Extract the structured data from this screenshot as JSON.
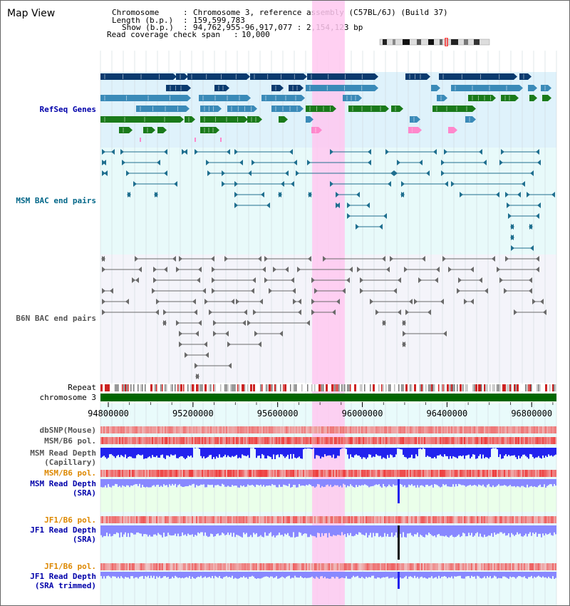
{
  "view": {
    "title": "Map View"
  },
  "header": {
    "chromosome_key": "Chromosome",
    "chromosome_value": "Chromosome 3, reference assembly (C57BL/6J) (Build 37)",
    "length_key": "Length (b.p.)",
    "length_value": "159,599,783",
    "show_key": "Show (b.p.)",
    "show_value": "94,762,955-96,917,077 : 2,154,123 bp",
    "coverage_key": "Read coverage check span",
    "coverage_value": "10,000"
  },
  "view_range": {
    "start": 94762955,
    "end": 96917077,
    "highlight_start": 95762955,
    "highlight_end": 95917077
  },
  "tracks": {
    "refseq": {
      "label": "RefSeq Genes",
      "color": "#0000aa"
    },
    "msm_bac": {
      "label": "MSM BAC end pairs",
      "color": "#006688"
    },
    "b6n_bac": {
      "label": "B6N BAC end pairs",
      "color": "#555555"
    },
    "repeat": {
      "label": "Repeat"
    },
    "chromosome": {
      "label": "chromosome 3"
    },
    "dbsnp": {
      "label": "dbSNP(Mouse)"
    },
    "msm_b6_pol_1": {
      "label": "MSM/B6 pol."
    },
    "msm_depth_cap": {
      "label": "MSM Read Depth\n(Capillary)"
    },
    "msm_b6_pol_2": {
      "label": "MSM/B6 pol."
    },
    "msm_depth_sra": {
      "label": "MSM Read Depth\n(SRA)"
    },
    "jf1_b6_pol_1": {
      "label": "JF1/B6 pol."
    },
    "jf1_depth_sra": {
      "label": "JF1 Read Depth\n(SRA)"
    },
    "jf1_b6_pol_2": {
      "label": "JF1/B6 pol."
    },
    "jf1_depth_trim": {
      "label": "JF1 Read Depth\n(SRA trimmed)"
    }
  },
  "axis": {
    "ticks": [
      {
        "value": 94800000,
        "label": "94800000"
      },
      {
        "value": 95200000,
        "label": "95200000"
      },
      {
        "value": 95600000,
        "label": "95600000"
      },
      {
        "value": 96000000,
        "label": "96000000"
      },
      {
        "value": 96400000,
        "label": "96400000"
      },
      {
        "value": 96800000,
        "label": "96800000"
      }
    ]
  },
  "colors": {
    "highlight": "#ffc8f0",
    "gene_dark": "#0a3a6e",
    "gene_mid": "#3a8ab8",
    "gene_green": "#1a7a1a",
    "gene_pink": "#ff88cc",
    "chrom_bar": "#006600",
    "depth_blue": "#2222ee",
    "depth_light": "#8888ff",
    "pol_red": "#ee3333",
    "pol_label_orange": "#dd8800",
    "label_blue": "#0000aa"
  }
}
